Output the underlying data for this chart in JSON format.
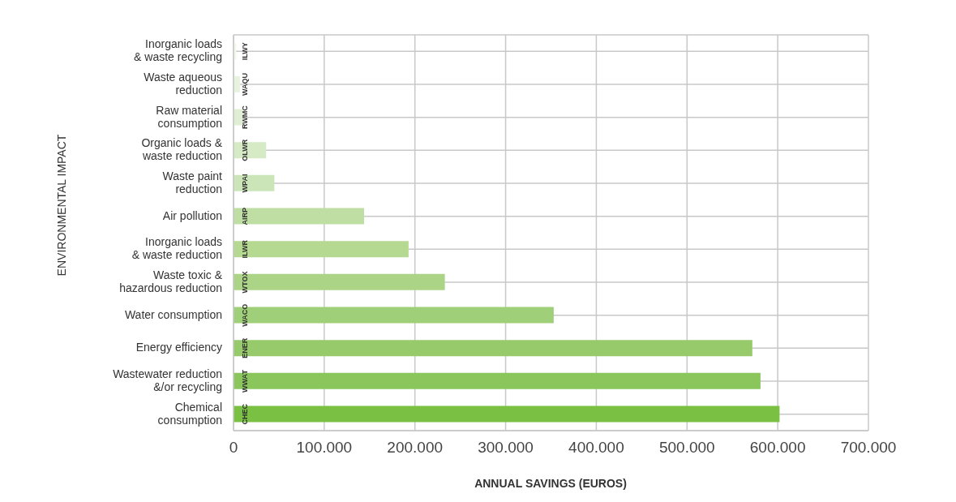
{
  "chart_data": {
    "type": "bar",
    "orientation": "horizontal",
    "xlabel": "ANNUAL SAVINGS (EUROS)",
    "ylabel": "ENVIRONMENTAL IMPACT",
    "categories": [
      "Inorganic loads & waste recycling",
      "Waste aqueous reduction",
      "Raw material consumption",
      "Organic loads & waste reduction",
      "Waste paint reduction",
      "Air pollution",
      "Inorganic loads & waste reduction",
      "Waste toxic & hazardous reduction",
      "Water consumption",
      "Energy efficiency",
      "Wastewater reduction &/or recycling",
      "Chemical consumption"
    ],
    "values": [
      3000,
      7000,
      10000,
      36000,
      45000,
      144000,
      193000,
      233000,
      353000,
      572000,
      581000,
      602000
    ],
    "colors": [
      "#f1f7ea",
      "#e8f3df",
      "#e0efd3",
      "#d5eac5",
      "#cbe5b8",
      "#bfdea3",
      "#b6d992",
      "#acd487",
      "#a0cf79",
      "#97ca6b",
      "#8ac65b",
      "#7ac143"
    ],
    "xlim": [
      0,
      700000
    ],
    "xticks": [
      0,
      {
        "value": 100000,
        "label": "100.000"
      },
      {
        "value": 200000,
        "label": "200.000"
      },
      {
        "value": 300000,
        "label": "300.000"
      },
      {
        "value": 400000,
        "label": "400.000"
      },
      {
        "value": 500000,
        "label": "500.000"
      },
      {
        "value": 600000,
        "label": "600.000"
      },
      {
        "value": 700000,
        "label": "700.000"
      }
    ],
    "grid": true,
    "annotations": [
      "ILWY",
      "WAQU",
      "RWMC",
      "OLWR",
      "WPAI",
      "AIRP",
      "ILWR",
      "WTOX",
      "WACO",
      "ENER",
      "WWAT",
      "CHEC"
    ]
  }
}
